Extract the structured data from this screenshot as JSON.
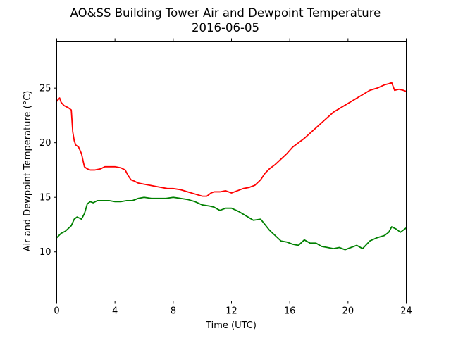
{
  "chart_data": {
    "type": "line",
    "title": "AO&SS Building Tower Air and Dewpoint Temperature",
    "subtitle": "2016-06-05",
    "xlabel": "Time (UTC)",
    "ylabel": "Air and Dewpoint Temperature (°C)",
    "xlim": [
      0,
      24
    ],
    "ylim": [
      5.5,
      29.3
    ],
    "xticks": [
      0,
      4,
      8,
      12,
      16,
      20,
      24
    ],
    "yticks": [
      10,
      15,
      20,
      25
    ],
    "grid": false,
    "legend": "none",
    "series": [
      {
        "color": "#ff0000",
        "x": [
          0.0,
          0.2,
          0.3,
          0.5,
          0.8,
          1.0,
          1.1,
          1.2,
          1.3,
          1.5,
          1.7,
          1.9,
          2.0,
          2.1,
          2.3,
          2.6,
          3.0,
          3.3,
          3.6,
          4.0,
          4.4,
          4.7,
          4.9,
          5.1,
          5.3,
          5.6,
          6.0,
          6.4,
          6.8,
          7.2,
          7.6,
          8.0,
          8.5,
          9.0,
          9.5,
          10.0,
          10.3,
          10.6,
          10.8,
          11.2,
          11.6,
          12.0,
          12.4,
          12.8,
          13.2,
          13.6,
          14.0,
          14.3,
          14.6,
          15.0,
          15.4,
          15.8,
          16.2,
          16.6,
          17.0,
          17.5,
          18.0,
          18.5,
          19.0,
          19.5,
          20.0,
          20.5,
          21.0,
          21.5,
          22.0,
          22.5,
          22.8,
          23.0,
          23.2,
          23.5,
          23.8,
          24.0
        ],
        "values": [
          23.8,
          24.1,
          23.7,
          23.4,
          23.2,
          23.0,
          21.0,
          20.2,
          19.8,
          19.6,
          19.0,
          17.8,
          17.7,
          17.6,
          17.5,
          17.5,
          17.6,
          17.8,
          17.8,
          17.8,
          17.7,
          17.5,
          17.0,
          16.6,
          16.5,
          16.3,
          16.2,
          16.1,
          16.0,
          15.9,
          15.8,
          15.8,
          15.7,
          15.5,
          15.3,
          15.1,
          15.1,
          15.4,
          15.5,
          15.5,
          15.6,
          15.4,
          15.6,
          15.8,
          15.9,
          16.1,
          16.6,
          17.2,
          17.6,
          18.0,
          18.5,
          19.0,
          19.6,
          20.0,
          20.4,
          21.0,
          21.6,
          22.2,
          22.8,
          23.2,
          23.6,
          24.0,
          24.4,
          24.8,
          25.0,
          25.3,
          25.4,
          25.5,
          24.8,
          24.9,
          24.8,
          24.7
        ]
      },
      {
        "color": "#008000",
        "x": [
          0.0,
          0.3,
          0.6,
          1.0,
          1.2,
          1.4,
          1.7,
          1.9,
          2.1,
          2.3,
          2.5,
          2.8,
          3.2,
          3.6,
          4.0,
          4.4,
          4.8,
          5.2,
          5.6,
          6.0,
          6.5,
          7.0,
          7.5,
          8.0,
          8.5,
          9.0,
          9.5,
          10.0,
          10.5,
          10.8,
          11.2,
          11.6,
          12.0,
          12.5,
          13.0,
          13.5,
          14.0,
          14.3,
          14.6,
          15.0,
          15.4,
          15.8,
          16.2,
          16.6,
          17.0,
          17.4,
          17.8,
          18.2,
          18.6,
          19.0,
          19.4,
          19.8,
          20.2,
          20.6,
          21.0,
          21.5,
          22.0,
          22.5,
          22.8,
          23.0,
          23.3,
          23.6,
          24.0
        ],
        "values": [
          11.3,
          11.7,
          11.9,
          12.4,
          13.0,
          13.2,
          13.0,
          13.5,
          14.4,
          14.6,
          14.5,
          14.7,
          14.7,
          14.7,
          14.6,
          14.6,
          14.7,
          14.7,
          14.9,
          15.0,
          14.9,
          14.9,
          14.9,
          15.0,
          14.9,
          14.8,
          14.6,
          14.3,
          14.2,
          14.1,
          13.8,
          14.0,
          14.0,
          13.7,
          13.3,
          12.9,
          13.0,
          12.5,
          12.0,
          11.5,
          11.0,
          10.9,
          10.7,
          10.6,
          11.1,
          10.8,
          10.8,
          10.5,
          10.4,
          10.3,
          10.4,
          10.2,
          10.4,
          10.6,
          10.3,
          11.0,
          11.3,
          11.5,
          11.8,
          12.3,
          12.1,
          11.8,
          12.2
        ]
      }
    ]
  }
}
